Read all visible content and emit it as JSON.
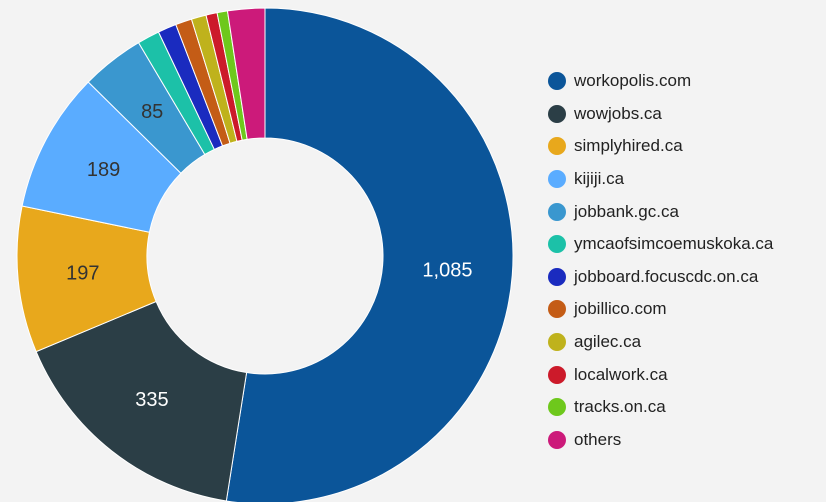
{
  "chart_data": {
    "type": "pie",
    "style": "donut",
    "legend_position": "right",
    "slices": [
      {
        "name": "workopolis.com",
        "value": 1085,
        "label": "1,085",
        "color": "#0b5599"
      },
      {
        "name": "wowjobs.ca",
        "value": 335,
        "label": "335",
        "color": "#2b3e46"
      },
      {
        "name": "simplyhired.ca",
        "value": 197,
        "label": "197",
        "color": "#e8a81c"
      },
      {
        "name": "kijiji.ca",
        "value": 189,
        "label": "189",
        "color": "#5aacff"
      },
      {
        "name": "jobbank.gc.ca",
        "value": 85,
        "label": "85",
        "color": "#3a97cf"
      },
      {
        "name": "ymcaofsimcoemuskoka.ca",
        "value": 30,
        "label": "",
        "color": "#1cc1a8"
      },
      {
        "name": "jobboard.focuscdc.on.ca",
        "value": 25,
        "label": "",
        "color": "#1a2bbf"
      },
      {
        "name": "jobillico.com",
        "value": 22,
        "label": "",
        "color": "#c45c16"
      },
      {
        "name": "agilec.ca",
        "value": 20,
        "label": "",
        "color": "#bfb21c"
      },
      {
        "name": "localwork.ca",
        "value": 15,
        "label": "",
        "color": "#cc1a2a"
      },
      {
        "name": "tracks.on.ca",
        "value": 14,
        "label": "",
        "color": "#6ec81c"
      },
      {
        "name": "others",
        "value": 50,
        "label": "",
        "color": "#cc1a7a"
      }
    ]
  }
}
